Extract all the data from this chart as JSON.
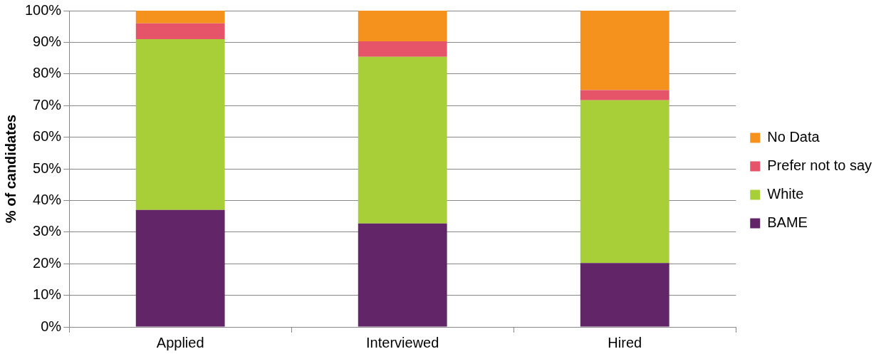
{
  "chart_data": {
    "type": "bar",
    "stacked": true,
    "ylabel": "% of candidates",
    "categories": [
      "Applied",
      "Interviewed",
      "Hired"
    ],
    "series": [
      {
        "name": "BAME",
        "color": "#622567",
        "values": [
          37,
          32.7,
          20.2
        ]
      },
      {
        "name": "White",
        "color": "#a9cf38",
        "values": [
          54,
          52.7,
          51.5
        ]
      },
      {
        "name": "Prefer not to say",
        "color": "#e55469",
        "values": [
          5,
          4.9,
          3.2
        ]
      },
      {
        "name": "No Data",
        "color": "#f5921e",
        "values": [
          4,
          9.7,
          25.1
        ]
      }
    ],
    "ylim": [
      0,
      100
    ],
    "yticks": [
      {
        "value": 0,
        "label": "0%"
      },
      {
        "value": 10,
        "label": "10%"
      },
      {
        "value": 20,
        "label": "20%"
      },
      {
        "value": 30,
        "label": "30%"
      },
      {
        "value": 40,
        "label": "40%"
      },
      {
        "value": 50,
        "label": "50%"
      },
      {
        "value": 60,
        "label": "60%"
      },
      {
        "value": 70,
        "label": "70%"
      },
      {
        "value": 80,
        "label": "80%"
      },
      {
        "value": 90,
        "label": "90%"
      },
      {
        "value": 100,
        "label": "100%"
      }
    ],
    "grid": "y",
    "legend": "right"
  }
}
